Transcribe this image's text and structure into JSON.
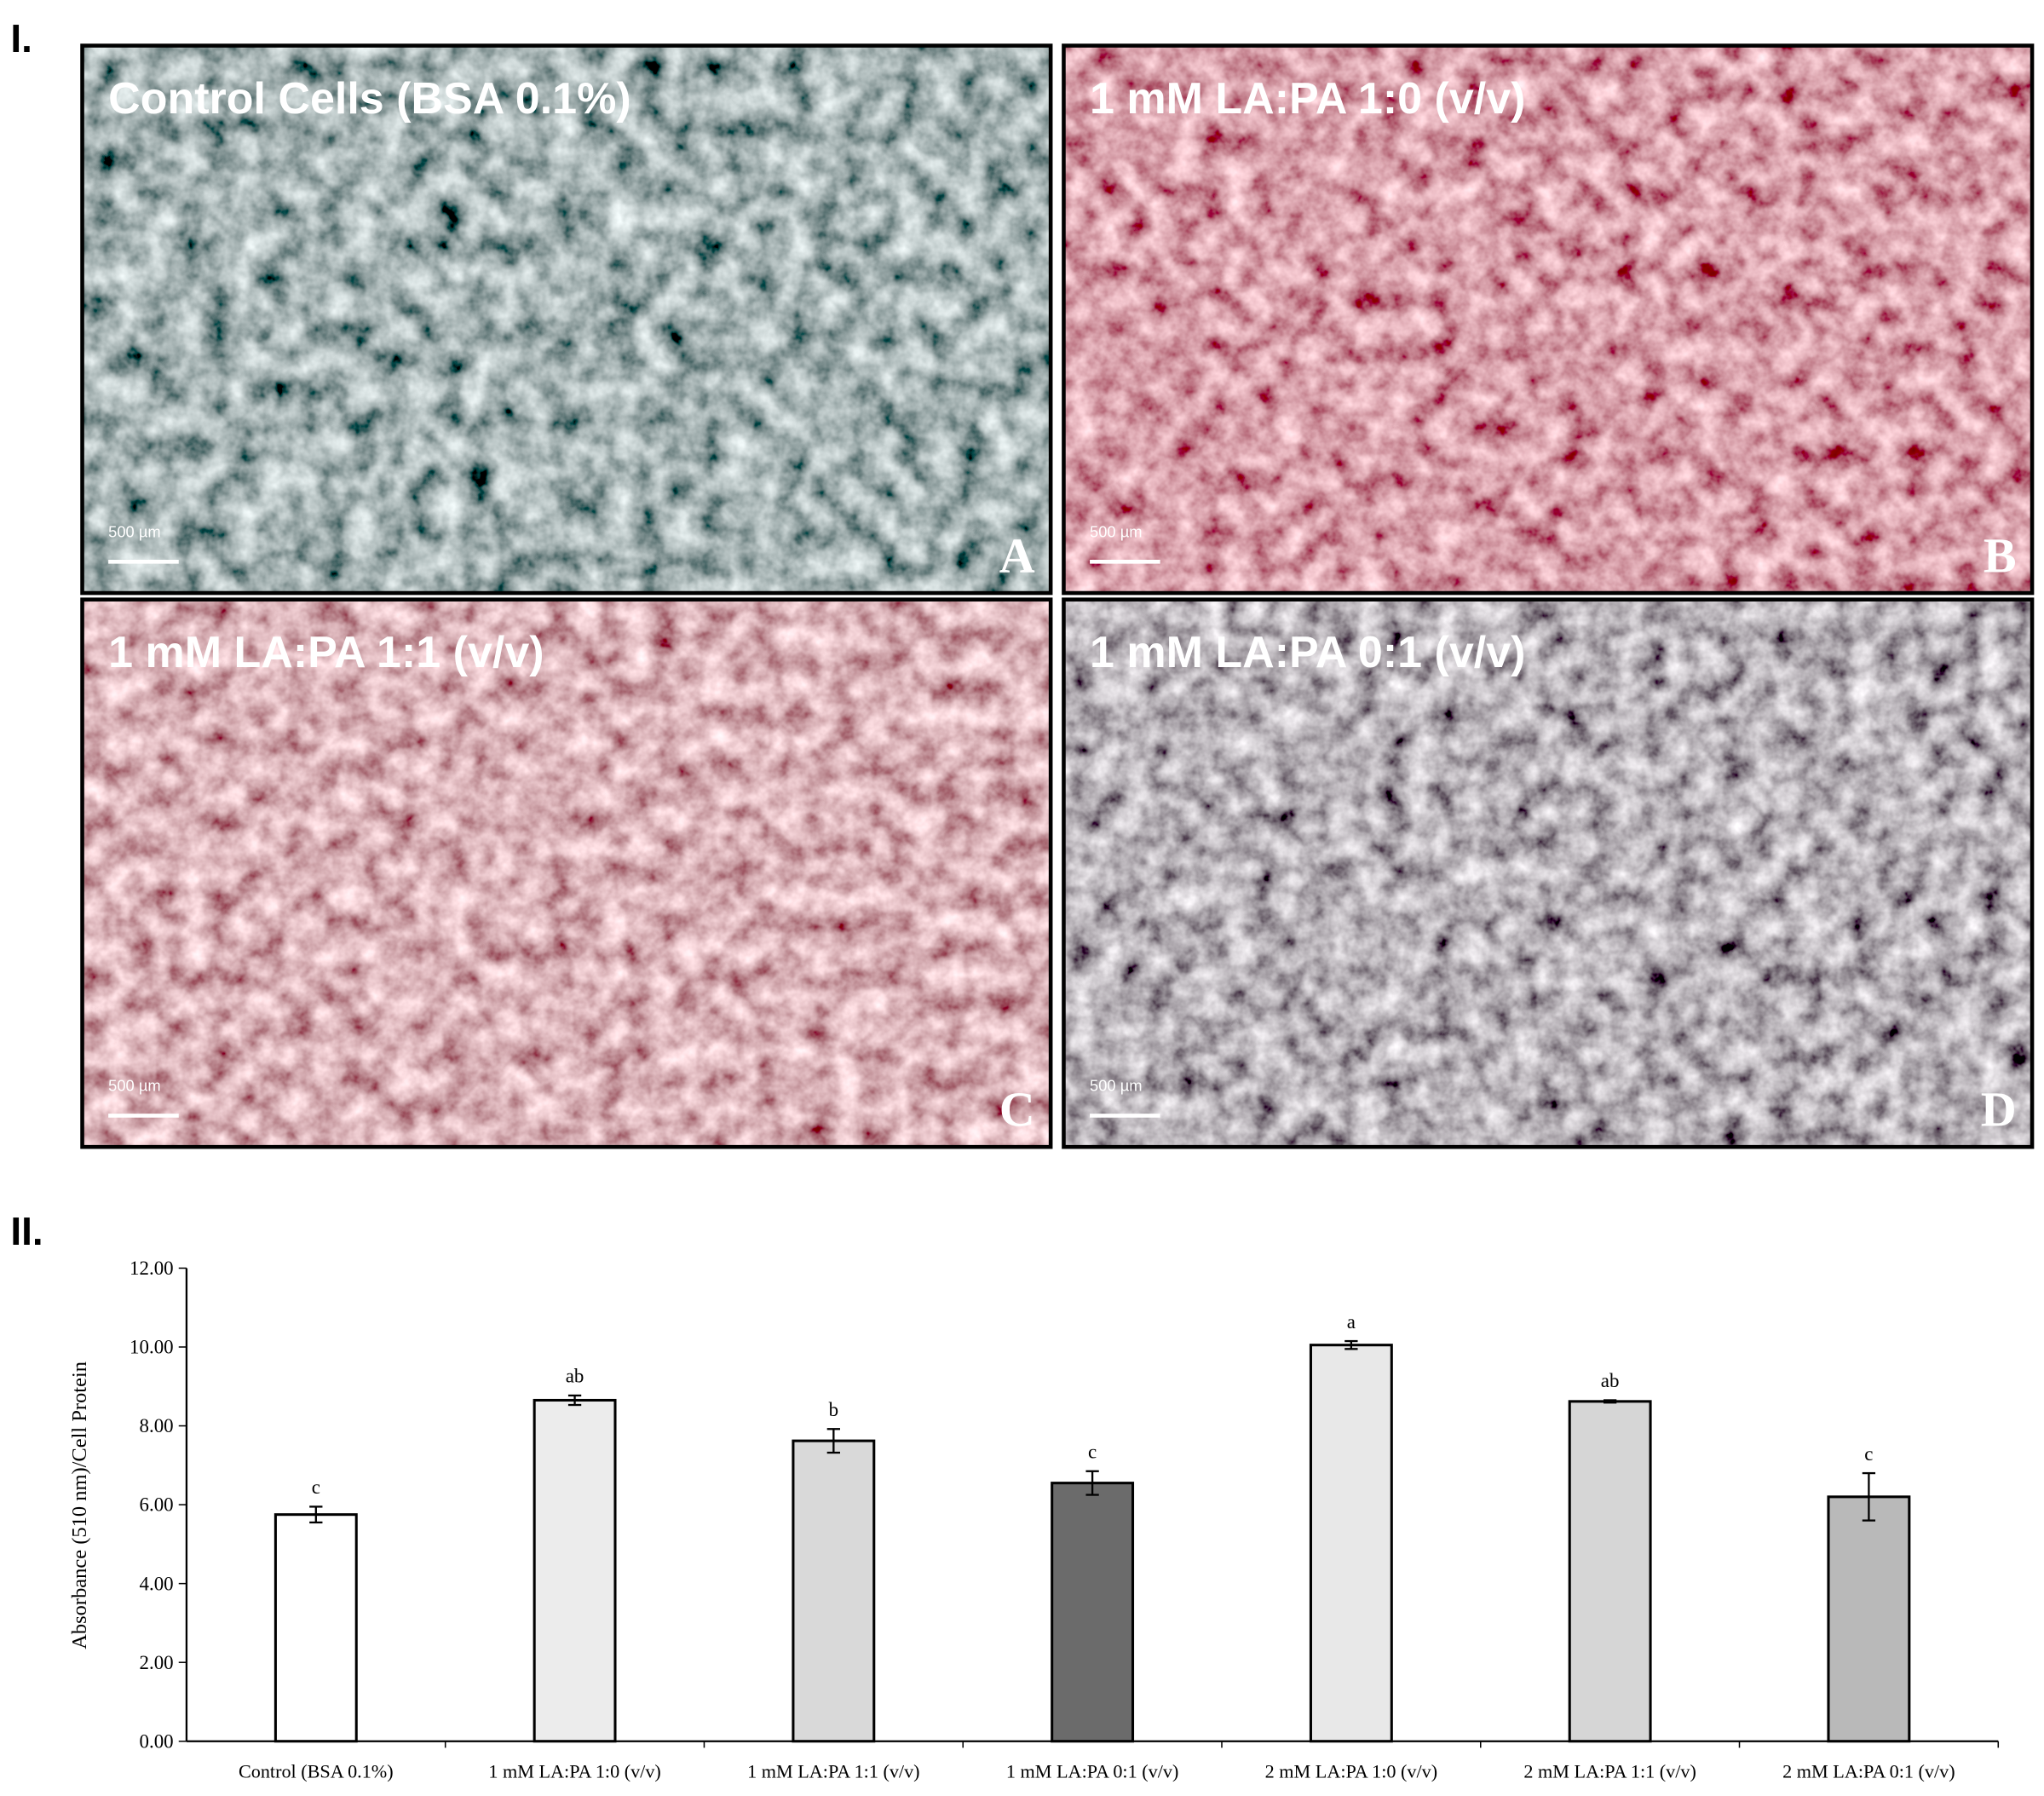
{
  "figure_labels": [
    "I.",
    "II."
  ],
  "micrographs": [
    {
      "title": "Control Cells (BSA 0.1%)",
      "letter": "A",
      "scale_bar": "500 µm"
    },
    {
      "title": "1 mM LA:PA 1:0 (v/v)",
      "letter": "B",
      "scale_bar": "500 µm"
    },
    {
      "title": "1 mM LA:PA 1:1 (v/v)",
      "letter": "C",
      "scale_bar": "500 µm"
    },
    {
      "title": "1 mM LA:PA 0:1 (v/v)",
      "letter": "D",
      "scale_bar": "500 µm"
    }
  ],
  "chart_data": {
    "type": "bar",
    "y_label": "Absorbance (510 nm)/Cell Protein",
    "categories": [
      "Control (BSA 0.1%)",
      "1 mM LA:PA 1:0 (v/v)",
      "1 mM LA:PA 1:1 (v/v)",
      "1 mM LA:PA 0:1 (v/v)",
      "2 mM LA:PA 1:0 (v/v)",
      "2 mM LA:PA 1:1 (v/v)",
      "2 mM LA:PA 0:1 (v/v)"
    ],
    "values": [
      5.75,
      8.65,
      7.62,
      6.55,
      10.05,
      8.62,
      6.2
    ],
    "errors": [
      0.2,
      0.12,
      0.3,
      0.3,
      0.1,
      0.03,
      0.6
    ],
    "annotations": [
      "c",
      "ab",
      "b",
      "c",
      "a",
      "ab",
      "c"
    ],
    "colors": [
      "#ffffff",
      "#ececec",
      "#d9d9d9",
      "#6b6b6b",
      "#e8e8e8",
      "#d6d6d6",
      "#b9b9b9"
    ],
    "ylim": [
      0,
      12
    ],
    "yticks": [
      {
        "value": 0,
        "label": "0.00"
      },
      {
        "value": 2,
        "label": "2.00"
      },
      {
        "value": 4,
        "label": "4.00"
      },
      {
        "value": 6,
        "label": "6.00"
      },
      {
        "value": 8,
        "label": "8.00"
      },
      {
        "value": 10,
        "label": "10.00"
      },
      {
        "value": 12,
        "label": "12.00"
      }
    ]
  }
}
